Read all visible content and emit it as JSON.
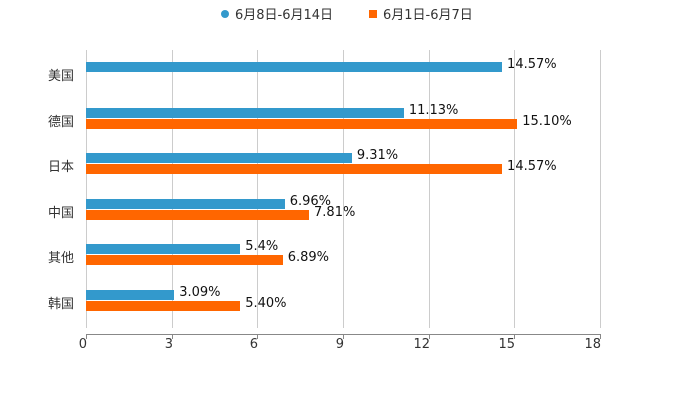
{
  "legend": [
    {
      "label": "6月8日-6月14日",
      "color": "#3399cc",
      "shape": "circle"
    },
    {
      "label": "6月1日-6月7日",
      "color": "#ff6600",
      "shape": "square"
    }
  ],
  "x_ticks": [
    "0",
    "3",
    "6",
    "9",
    "12",
    "15",
    "18"
  ],
  "categories": [
    "美国",
    "德国",
    "日本",
    "中国",
    "其他",
    "韩国"
  ],
  "labels": {
    "blue": [
      "14.57%",
      "11.13%",
      "9.31%",
      "6.96%",
      "5.4%",
      "3.09%"
    ],
    "orange": [
      "",
      "15.10%",
      "14.57%",
      "7.81%",
      "6.89%",
      "5.40%"
    ]
  },
  "chart_data": {
    "type": "bar",
    "orientation": "horizontal",
    "title": "",
    "xlabel": "",
    "ylabel": "",
    "xlim": [
      0,
      18
    ],
    "x_ticks": [
      0,
      3,
      6,
      9,
      12,
      15,
      18
    ],
    "grid": true,
    "legend_position": "top",
    "categories": [
      "美国",
      "德国",
      "日本",
      "中国",
      "其他",
      "韩国"
    ],
    "series": [
      {
        "name": "6月8日-6月14日",
        "color": "#3399cc",
        "values": [
          14.57,
          11.13,
          9.31,
          6.96,
          5.4,
          3.09
        ],
        "labels": [
          "14.57%",
          "11.13%",
          "9.31%",
          "6.96%",
          "5.4%",
          "3.09%"
        ]
      },
      {
        "name": "6月1日-6月7日",
        "color": "#ff6600",
        "values": [
          null,
          15.1,
          14.57,
          7.81,
          6.89,
          5.4
        ],
        "labels": [
          null,
          "15.10%",
          "14.57%",
          "7.81%",
          "6.89%",
          "5.40%"
        ]
      }
    ]
  }
}
